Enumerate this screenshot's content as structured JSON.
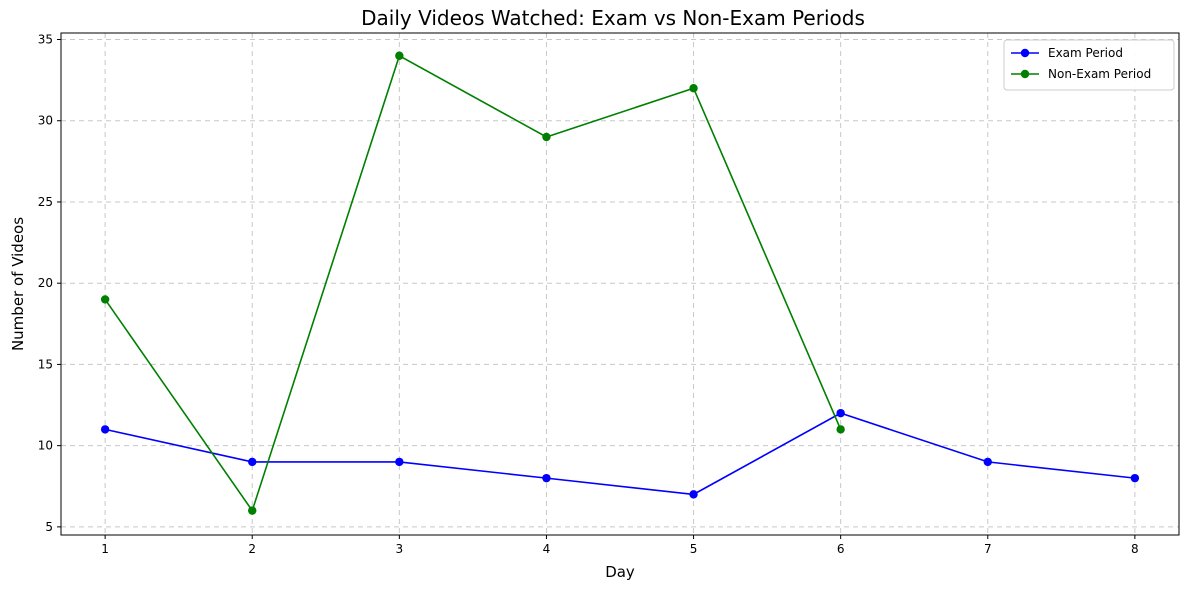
{
  "chart_data": {
    "type": "line",
    "title": "Daily Videos Watched: Exam vs Non-Exam Periods",
    "xlabel": "Day",
    "ylabel": "Number of Videos",
    "xlim": [
      0.7,
      8.3
    ],
    "ylim": [
      4.5,
      35.4
    ],
    "xticks": [
      1,
      2,
      3,
      4,
      5,
      6,
      7,
      8
    ],
    "yticks": [
      5,
      10,
      15,
      20,
      25,
      30,
      35
    ],
    "grid": true,
    "legend_position": "top-right",
    "series": [
      {
        "name": "Exam Period",
        "color": "#0000ff",
        "x": [
          1,
          2,
          3,
          4,
          5,
          6,
          7,
          8
        ],
        "values": [
          11,
          9,
          9,
          8,
          7,
          12,
          9,
          8
        ]
      },
      {
        "name": "Non-Exam Period",
        "color": "#008000",
        "x": [
          1,
          2,
          3,
          4,
          5,
          6
        ],
        "values": [
          19,
          6,
          34,
          29,
          32,
          11
        ]
      }
    ]
  }
}
